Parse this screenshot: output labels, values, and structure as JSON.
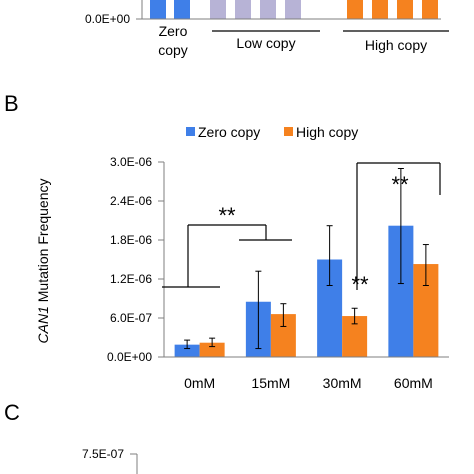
{
  "colors": {
    "zero": "#3f7fe8",
    "low": "#b7b3d6",
    "high": "#f5821f",
    "axis": "#7f7f7f",
    "text": "#000000"
  },
  "panel_a": {
    "y_zero_label": "0.0E+00",
    "groups": [
      "Zero\ncopy",
      "Low copy",
      "High copy"
    ],
    "bar_colors": [
      "zero",
      "zero",
      "low",
      "low",
      "low",
      "low",
      "high",
      "high",
      "high",
      "high"
    ]
  },
  "panel_b": {
    "label": "B",
    "sig_left": "**",
    "sig_right": "**",
    "sig_bar": "**"
  },
  "panel_c": {
    "label": "C",
    "y_top_label": "7.5E-07"
  },
  "chart_data": [
    {
      "type": "bar",
      "title": "",
      "ylabel": "CAN1 Mutation Frequency",
      "ylabel_italic": "CAN1",
      "ylabel_rest": " Mutation Frequency",
      "xlabel": "",
      "categories": [
        "0mM",
        "15mM",
        "30mM",
        "60mM"
      ],
      "ylim": [
        0,
        3e-06
      ],
      "yticks": [
        0,
        6e-07,
        1.2e-06,
        1.8e-06,
        2.4e-06,
        3e-06
      ],
      "ytick_labels": [
        "0.0E+00",
        "6.0E-07",
        "1.2E-06",
        "1.8E-06",
        "2.4E-06",
        "3.0E-06"
      ],
      "legend_position": "top",
      "grid": false,
      "series": [
        {
          "name": "Zero copy",
          "color": "zero",
          "values": [
            1.9e-07,
            8.5e-07,
            1.5e-06,
            2.02e-06
          ],
          "err_low": [
            1.3e-07,
            1.3e-07,
            1.1e-06,
            1.13e-06
          ],
          "err_high": [
            2.6e-07,
            1.32e-06,
            2.02e-06,
            2.9e-06
          ]
        },
        {
          "name": "High copy",
          "color": "high",
          "values": [
            2.2e-07,
            6.6e-07,
            6.3e-07,
            1.43e-06
          ],
          "err_low": [
            1.6e-07,
            4.7e-07,
            5.1e-07,
            1.1e-06
          ],
          "err_high": [
            2.9e-07,
            8.2e-07,
            7.5e-07,
            1.73e-06
          ]
        }
      ]
    }
  ]
}
